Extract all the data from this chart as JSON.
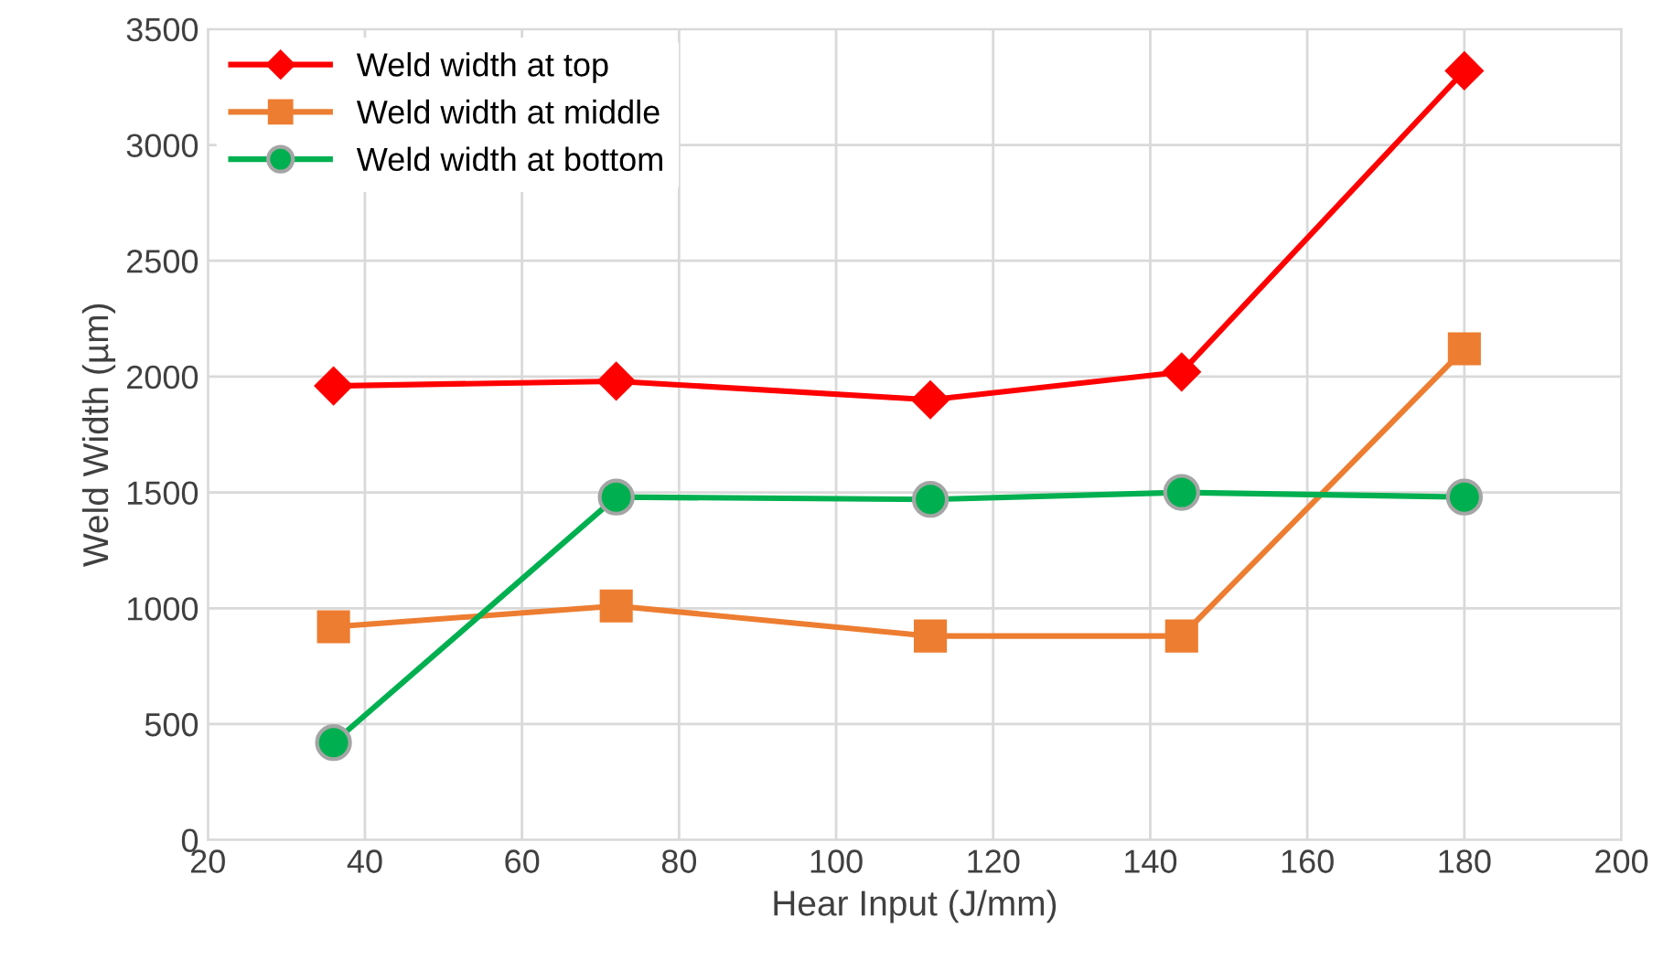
{
  "chart_data": {
    "type": "line",
    "xlabel": "Hear Input (J/mm)",
    "ylabel": "Weld Width (µm)",
    "x": [
      36,
      72,
      112,
      144,
      180
    ],
    "series": [
      {
        "name": "Weld width at top",
        "color": "#ff0000",
        "marker": "diamond",
        "values": [
          1960,
          1980,
          1900,
          2020,
          3320
        ]
      },
      {
        "name": "Weld width at middle",
        "color": "#ed7d31",
        "marker": "square",
        "values": [
          920,
          1010,
          880,
          880,
          2120
        ]
      },
      {
        "name": "Weld width at bottom",
        "color": "#00b050",
        "marker": "circle",
        "values": [
          420,
          1480,
          1470,
          1500,
          1480
        ]
      }
    ],
    "xlim": [
      20,
      200
    ],
    "xticks": [
      20,
      40,
      60,
      80,
      100,
      120,
      140,
      160,
      180,
      200
    ],
    "ylim": [
      0,
      3500
    ],
    "yticks": [
      0,
      500,
      1000,
      1500,
      2000,
      2500,
      3000,
      3500
    ],
    "grid": true,
    "legend": "top left",
    "line_style": "solid"
  }
}
